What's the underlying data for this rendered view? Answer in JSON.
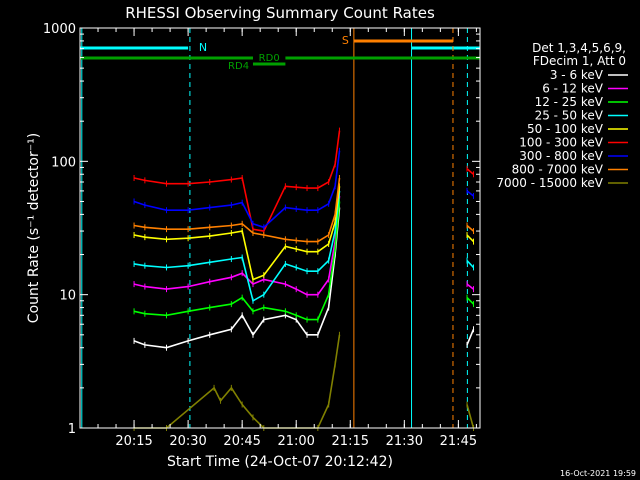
{
  "chart_data": {
    "type": "line",
    "title": "RHESSI Observing Summary Count Rates",
    "xlabel": "Start Time (24-Oct-07 20:12:42)",
    "ylabel": "Count Rate (s⁻¹ detector⁻¹)",
    "yscale": "log",
    "ylim": [
      1,
      1000
    ],
    "xlim_minutes": [
      20.0,
      21.85
    ],
    "x_ticks": [
      "20:15",
      "20:30",
      "20:45",
      "21:00",
      "21:15",
      "21:30",
      "21:45"
    ],
    "y_ticks": [
      "1",
      "10",
      "100",
      "1000"
    ],
    "legend_title": [
      "Det 1,3,4,5,6,9,",
      "FDecim 1, Att 0"
    ],
    "legend_position": "right",
    "footer": "16-Oct-2021 19:59",
    "annotations": {
      "night": "N",
      "saa": "S",
      "rd0": "RD0",
      "rd4": "RD4"
    },
    "series": [
      {
        "name": "3 - 6 keV",
        "color": "#ffffff",
        "points": [
          [
            20.25,
            4.5
          ],
          [
            20.3,
            4.2
          ],
          [
            20.4,
            4.0
          ],
          [
            20.5,
            4.5
          ],
          [
            20.6,
            5.0
          ],
          [
            20.7,
            5.5
          ],
          [
            20.75,
            7.0
          ],
          [
            20.8,
            5.0
          ],
          [
            20.85,
            6.5
          ],
          [
            20.95,
            7.0
          ],
          [
            21.0,
            6.5
          ],
          [
            21.05,
            5.0
          ],
          [
            21.1,
            5.0
          ],
          [
            21.15,
            8.0
          ],
          [
            21.18,
            20
          ],
          [
            21.2,
            45
          ],
          [
            21.79,
            4.2
          ],
          [
            21.82,
            5.5
          ]
        ]
      },
      {
        "name": "6 - 12 keV",
        "color": "#ff00ff",
        "points": [
          [
            20.25,
            12
          ],
          [
            20.3,
            11.5
          ],
          [
            20.4,
            11
          ],
          [
            20.5,
            11.5
          ],
          [
            20.6,
            12.5
          ],
          [
            20.7,
            13.5
          ],
          [
            20.75,
            14.5
          ],
          [
            20.8,
            12
          ],
          [
            20.85,
            13
          ],
          [
            20.95,
            12
          ],
          [
            21.0,
            11
          ],
          [
            21.05,
            10
          ],
          [
            21.1,
            10
          ],
          [
            21.15,
            13
          ],
          [
            21.18,
            25
          ],
          [
            21.2,
            55
          ],
          [
            21.79,
            12
          ],
          [
            21.82,
            11
          ]
        ]
      },
      {
        "name": "12 - 25 keV",
        "color": "#00ff00",
        "points": [
          [
            20.25,
            7.5
          ],
          [
            20.3,
            7.2
          ],
          [
            20.4,
            7.0
          ],
          [
            20.5,
            7.5
          ],
          [
            20.6,
            8.0
          ],
          [
            20.7,
            8.5
          ],
          [
            20.75,
            9.5
          ],
          [
            20.8,
            7.5
          ],
          [
            20.85,
            8.0
          ],
          [
            20.95,
            7.5
          ],
          [
            21.0,
            7.0
          ],
          [
            21.05,
            6.5
          ],
          [
            21.1,
            6.5
          ],
          [
            21.15,
            10
          ],
          [
            21.18,
            22
          ],
          [
            21.2,
            50
          ],
          [
            21.79,
            9.5
          ],
          [
            21.82,
            8.5
          ]
        ]
      },
      {
        "name": "25 - 50 keV",
        "color": "#00ffff",
        "points": [
          [
            20.25,
            17
          ],
          [
            20.3,
            16.5
          ],
          [
            20.4,
            16
          ],
          [
            20.5,
            16.5
          ],
          [
            20.6,
            17.5
          ],
          [
            20.7,
            18.5
          ],
          [
            20.75,
            19
          ],
          [
            20.8,
            9
          ],
          [
            20.85,
            10
          ],
          [
            20.95,
            17
          ],
          [
            21.0,
            16
          ],
          [
            21.05,
            15
          ],
          [
            21.1,
            15
          ],
          [
            21.15,
            18
          ],
          [
            21.18,
            30
          ],
          [
            21.2,
            60
          ],
          [
            21.79,
            18
          ],
          [
            21.82,
            16
          ]
        ]
      },
      {
        "name": "50 - 100 keV",
        "color": "#ffff00",
        "points": [
          [
            20.25,
            28
          ],
          [
            20.3,
            27
          ],
          [
            20.4,
            26
          ],
          [
            20.5,
            26.5
          ],
          [
            20.6,
            27.5
          ],
          [
            20.7,
            29
          ],
          [
            20.75,
            30
          ],
          [
            20.8,
            13
          ],
          [
            20.85,
            14
          ],
          [
            20.95,
            23
          ],
          [
            21.0,
            22
          ],
          [
            21.05,
            21
          ],
          [
            21.1,
            21
          ],
          [
            21.15,
            24
          ],
          [
            21.18,
            35
          ],
          [
            21.2,
            65
          ],
          [
            21.79,
            28
          ],
          [
            21.82,
            25
          ]
        ]
      },
      {
        "name": "100 - 300 keV",
        "color": "#ff0000",
        "points": [
          [
            20.25,
            75
          ],
          [
            20.3,
            72
          ],
          [
            20.4,
            68
          ],
          [
            20.5,
            68
          ],
          [
            20.6,
            70
          ],
          [
            20.7,
            73
          ],
          [
            20.75,
            75
          ],
          [
            20.8,
            31
          ],
          [
            20.85,
            30
          ],
          [
            20.95,
            65
          ],
          [
            21.0,
            64
          ],
          [
            21.05,
            63
          ],
          [
            21.1,
            63
          ],
          [
            21.15,
            70
          ],
          [
            21.18,
            95
          ],
          [
            21.2,
            170
          ],
          [
            21.79,
            88
          ],
          [
            21.82,
            80
          ]
        ]
      },
      {
        "name": "300 - 800 keV",
        "color": "#0000ff",
        "points": [
          [
            20.25,
            50
          ],
          [
            20.3,
            47
          ],
          [
            20.4,
            43
          ],
          [
            20.5,
            43
          ],
          [
            20.6,
            45
          ],
          [
            20.7,
            47
          ],
          [
            20.75,
            49
          ],
          [
            20.8,
            34
          ],
          [
            20.85,
            32
          ],
          [
            20.95,
            45
          ],
          [
            21.0,
            44
          ],
          [
            21.05,
            43
          ],
          [
            21.1,
            43
          ],
          [
            21.15,
            48
          ],
          [
            21.18,
            65
          ],
          [
            21.2,
            120
          ],
          [
            21.79,
            60
          ],
          [
            21.82,
            55
          ]
        ]
      },
      {
        "name": "800 - 7000 keV",
        "color": "#ff8000",
        "points": [
          [
            20.25,
            33
          ],
          [
            20.3,
            32
          ],
          [
            20.4,
            31
          ],
          [
            20.5,
            31
          ],
          [
            20.6,
            32
          ],
          [
            20.7,
            33
          ],
          [
            20.75,
            34
          ],
          [
            20.8,
            29
          ],
          [
            20.85,
            28
          ],
          [
            20.95,
            26
          ],
          [
            21.0,
            25.5
          ],
          [
            21.05,
            25
          ],
          [
            21.1,
            25
          ],
          [
            21.15,
            28
          ],
          [
            21.18,
            40
          ],
          [
            21.2,
            75
          ],
          [
            21.79,
            33
          ],
          [
            21.82,
            30
          ]
        ]
      },
      {
        "name": "7000 - 15000 keV",
        "color": "#808000",
        "points": [
          [
            20.25,
            1
          ],
          [
            20.4,
            1
          ],
          [
            20.62,
            2.0
          ],
          [
            20.65,
            1.6
          ],
          [
            20.7,
            2.0
          ],
          [
            20.75,
            1.5
          ],
          [
            20.8,
            1.2
          ],
          [
            20.85,
            1
          ],
          [
            21.1,
            1
          ],
          [
            21.15,
            1.5
          ],
          [
            21.18,
            3.0
          ],
          [
            21.2,
            5.0
          ],
          [
            21.79,
            1.5
          ],
          [
            21.82,
            1
          ]
        ]
      }
    ]
  }
}
